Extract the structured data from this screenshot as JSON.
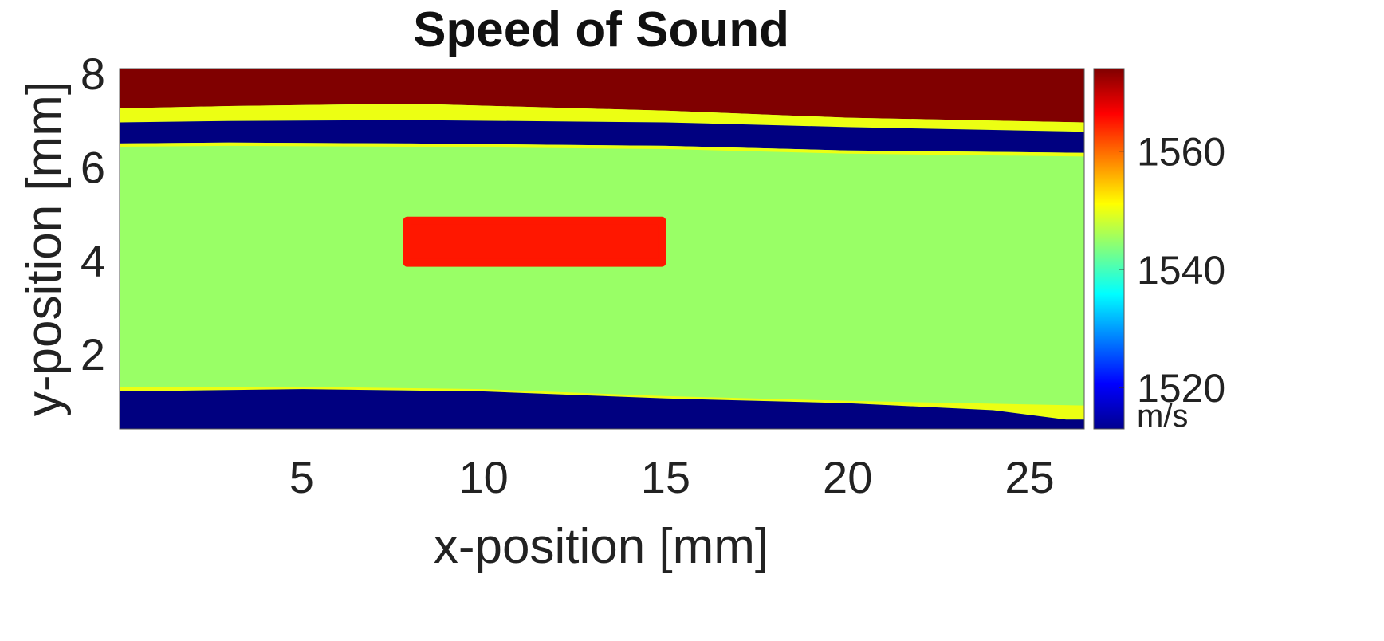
{
  "chart_data": {
    "type": "heatmap",
    "title": "Speed of Sound",
    "xlabel": "x-position [mm]",
    "ylabel": "y-position [mm]",
    "xlim": [
      0,
      26.5
    ],
    "ylim": [
      0.4,
      8.1
    ],
    "xticks": [
      5,
      10,
      15,
      20,
      25
    ],
    "yticks": [
      2,
      4,
      6,
      8
    ],
    "colorbar": {
      "label": "m/s",
      "range": [
        1513,
        1574
      ],
      "ticks": [
        1520,
        1540,
        1560
      ],
      "colormap": "jet"
    },
    "regions": [
      {
        "name": "top-layer",
        "value": 1574,
        "points": [
          [
            0,
            8.1
          ],
          [
            26.5,
            8.1
          ],
          [
            26.5,
            6.95
          ],
          [
            20,
            7.05
          ],
          [
            15,
            7.2
          ],
          [
            8,
            7.35
          ],
          [
            3,
            7.3
          ],
          [
            0,
            7.25
          ]
        ]
      },
      {
        "name": "upper-yellow-band",
        "value": 1550,
        "points": [
          [
            0,
            7.25
          ],
          [
            3,
            7.3
          ],
          [
            8,
            7.35
          ],
          [
            15,
            7.2
          ],
          [
            20,
            7.05
          ],
          [
            26.5,
            6.95
          ],
          [
            26.5,
            6.75
          ],
          [
            20,
            6.85
          ],
          [
            15,
            6.95
          ],
          [
            8,
            7.0
          ],
          [
            3,
            6.98
          ],
          [
            0,
            6.95
          ]
        ]
      },
      {
        "name": "upper-blue-band",
        "value": 1513,
        "points": [
          [
            0,
            6.95
          ],
          [
            3,
            6.98
          ],
          [
            8,
            7.0
          ],
          [
            15,
            6.95
          ],
          [
            20,
            6.85
          ],
          [
            26.5,
            6.75
          ],
          [
            26.5,
            6.3
          ],
          [
            20,
            6.35
          ],
          [
            15,
            6.45
          ],
          [
            8,
            6.5
          ],
          [
            3,
            6.52
          ],
          [
            0,
            6.5
          ]
        ]
      },
      {
        "name": "upper-yellow-edge",
        "value": 1550,
        "points": [
          [
            0,
            6.5
          ],
          [
            3,
            6.52
          ],
          [
            8,
            6.5
          ],
          [
            15,
            6.45
          ],
          [
            20,
            6.35
          ],
          [
            26.5,
            6.3
          ],
          [
            26.5,
            6.22
          ],
          [
            20,
            6.28
          ],
          [
            15,
            6.38
          ],
          [
            8,
            6.43
          ],
          [
            3,
            6.45
          ],
          [
            0,
            6.43
          ]
        ]
      },
      {
        "name": "lower-yellow-band",
        "value": 1550,
        "points": [
          [
            0,
            1.2
          ],
          [
            5,
            1.25
          ],
          [
            10,
            1.2
          ],
          [
            15,
            1.05
          ],
          [
            20,
            0.95
          ],
          [
            24,
            0.8
          ],
          [
            26,
            0.6
          ],
          [
            26.5,
            0.6
          ],
          [
            26.5,
            0.9
          ],
          [
            20,
            1.0
          ],
          [
            15,
            1.1
          ],
          [
            10,
            1.25
          ],
          [
            5,
            1.3
          ],
          [
            0,
            1.3
          ]
        ]
      },
      {
        "name": "lower-blue-band",
        "value": 1513,
        "points": [
          [
            0,
            0.4
          ],
          [
            26.5,
            0.4
          ],
          [
            26.5,
            0.6
          ],
          [
            26,
            0.6
          ],
          [
            24,
            0.8
          ],
          [
            20,
            0.95
          ],
          [
            15,
            1.05
          ],
          [
            10,
            1.2
          ],
          [
            5,
            1.25
          ],
          [
            0,
            1.2
          ]
        ]
      },
      {
        "name": "inclusion",
        "value": 1565,
        "points": [
          [
            7.9,
            4.85
          ],
          [
            14.9,
            4.85
          ],
          [
            14.9,
            3.95
          ],
          [
            7.9,
            3.95
          ]
        ]
      }
    ],
    "background_value": 1545
  }
}
